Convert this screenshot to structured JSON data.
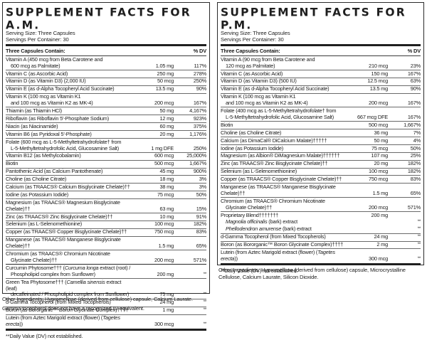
{
  "am": {
    "title": "SUPPLEMENT FACTS FOR A.M.",
    "serving_size": "Serving Size: Three Capsules",
    "servings_per_container": "Servings Per Container: 30",
    "header": {
      "label": "Three Capsules Contain:",
      "dv": "% DV"
    },
    "rows": [
      {
        "name": "Vitamin A (450 mcg from Beta Carotene and",
        "name2": "600 mcg as Palmitate)",
        "amount": "1.05 mg",
        "dv": "117%"
      },
      {
        "name": "Vitamin C (as Ascorbic Acid)",
        "amount": "250 mg",
        "dv": "278%"
      },
      {
        "name": "Vitamin D (as Vitamin D3) (2,000 IU)",
        "amount": "50 mcg",
        "dv": "250%"
      },
      {
        "name": "Vitamin E (as d-Alpha Tocopheryl Acid Succinate)",
        "amount": "13.5 mg",
        "dv": "90%"
      },
      {
        "name": "Vitamin K (100 mcg as Vitamin K1",
        "name2": "and 100 mcg as Vitamin K2 as MK-4)",
        "amount": "200 mcg",
        "dv": "167%"
      },
      {
        "name": "Thiamin (as Thiamin HCl)",
        "amount": "50 mg",
        "dv": "4,167%"
      },
      {
        "name": "Riboflavin (as Riboflavin 5'-Phosphate Sodium)",
        "amount": "12 mg",
        "dv": "923%"
      },
      {
        "name": "Niacin (as Niacinamide)",
        "amount": "60 mg",
        "dv": "375%"
      },
      {
        "name": "Vitamin B6 (as Pyridoxal 5'-Phosphate)",
        "amount": "20 mg",
        "dv": "1,176%"
      },
      {
        "name": "Folate (600 mcg as L-5-Methyltetrahydrofolate† from",
        "name2": "L-5-Methyltetrahydrofolic Acid, Glucosamine Salt)",
        "amount": "1 mg DFE",
        "dv": "250%"
      },
      {
        "name": "Vitamin B12 (as Methylcobalamin)",
        "amount": "600 mcg",
        "dv": "25,000%"
      },
      {
        "name": "Biotin",
        "amount": "500 mcg",
        "dv": "1,667%"
      },
      {
        "name": "Pantothenic Acid (as Calcium Pantothenate)",
        "amount": "45 mg",
        "dv": "900%"
      },
      {
        "name": "Choline (as Choline Citrate)",
        "amount": "18 mg",
        "dv": "3%"
      },
      {
        "name": "Calcium (as TRAACS® Calcium Bisglycinate Chelate)††",
        "amount": "38 mg",
        "dv": "3%"
      },
      {
        "name": "Iodine (as Potassium Iodide)",
        "amount": "75 mcg",
        "dv": "50%"
      },
      {
        "name": "Magnesium (as TRAACS® Magnesium Bisglycinate Chelate)††",
        "amount": "63 mg",
        "dv": "15%"
      },
      {
        "name": "Zinc (as TRAACS® Zinc Bisglycinate Chelate)††",
        "amount": "10 mg",
        "dv": "91%"
      },
      {
        "name": "Selenium (as L-Selenomethionine)",
        "amount": "100 mcg",
        "dv": "182%"
      },
      {
        "name": "Copper (as TRAACS® Copper Bisglycinate Chelate)††",
        "amount": "750 mcg",
        "dv": "83%"
      },
      {
        "name": "Manganese (as TRAACS® Manganese Bisglycinate Chelate)††",
        "amount": "1.5 mg",
        "dv": "65%"
      },
      {
        "name": "Chromium (as TRAACS® Chromium Nicotinate",
        "name2": "Glycinate Chelate)††",
        "amount": "200 mcg",
        "dv": "571%"
      }
    ],
    "botanicals": [
      {
        "pre": "Curcumin Phytosome††† (",
        "italic": "Curcuma longa",
        "post": " extract (root) /",
        "name2": "Phospholipid complex from Sunflower)",
        "amount": "200 mg",
        "dv": "**"
      },
      {
        "pre": "Green Tea Phytosome††† (",
        "italic": "Camellia sinensis",
        "post": " extract (leaf)",
        "name2": "decaffeinated / Phospholipid complex from Sunflower)",
        "amount": "75 mg",
        "dv": "**"
      },
      {
        "pre": "d-Gamma Tocopherol (from Mixed Tocopherols)",
        "italic": "",
        "post": "",
        "amount": "24 mg",
        "dv": "**"
      },
      {
        "pre": "Boron (as Bororganic™ Boron Glycinate Complex)††††",
        "italic": "",
        "post": "",
        "amount": "1 mg",
        "dv": "**"
      },
      {
        "pre": "Lutein (from Aztec Marigold extract (flower) (",
        "italic": "Tagetes erecta",
        "post": "))",
        "amount": "300 mcg",
        "dv": "**"
      }
    ],
    "footnote": "**Daily Value (DV) not established.",
    "other_ingredients": "Other Ingredients: Hypromellose (derived from cellulose) capsule, Calcium Laurate.",
    "note": "Gamma tocopherol does not have a recognized IU equivalent."
  },
  "pm": {
    "title": "SUPPLEMENT FACTS FOR P.M.",
    "serving_size": "Serving Size: Three Capsules",
    "servings_per_container": "Servings Per Container: 30",
    "header": {
      "label": "Three Capsules Contain:",
      "dv": "% DV"
    },
    "rows": [
      {
        "name": "Vitamin A (90 mcg from Beta Carotene and",
        "name2": "120 mcg as Palmitate)",
        "amount": "210 mcg",
        "dv": "23%"
      },
      {
        "name": "Vitamin C (as Ascorbic Acid)",
        "amount": "150 mg",
        "dv": "167%"
      },
      {
        "name": "Vitamin D (as Vitamin D3) (500 IU)",
        "amount": "12.5 mcg",
        "dv": "63%"
      },
      {
        "name": "Vitamin E (as d-Alpha Tocopheryl Acid Succinate)",
        "amount": "13.5 mg",
        "dv": "90%"
      },
      {
        "name": "Vitamin K (100 mcg as Vitamin K1",
        "name2": "and 100 mcg as Vitamin K2 as MK-4)",
        "amount": "200 mcg",
        "dv": "167%"
      },
      {
        "name": "Folate (400 mcg as L-5-Methyltetrahydrofolate† from",
        "name2": "L-5-Methyltetrahydrofolic Acid, Glucosamine Salt)",
        "amount": "667 mcg DFE",
        "dv": "167%"
      },
      {
        "name": "Biotin",
        "amount": "500 mcg",
        "dv": "1,667%"
      },
      {
        "name": "Choline (as Choline Citrate)",
        "amount": "36 mg",
        "dv": "7%"
      },
      {
        "name": "Calcium (as DimaCal® DiCalcium Malate)†††††",
        "amount": "50 mg",
        "dv": "4%"
      },
      {
        "name": "Iodine (as Potassium Iodide)",
        "amount": "75 mcg",
        "dv": "50%"
      },
      {
        "name": "Magnesium (as Albion® DiMagnesium Malate)††††††",
        "amount": "107 mg",
        "dv": "25%"
      },
      {
        "name": "Zinc (as TRAACS® Zinc Bisglycinate Chelate)††",
        "amount": "20 mg",
        "dv": "182%"
      },
      {
        "name": "Selenium (as L-Selenomethionine)",
        "amount": "100 mcg",
        "dv": "182%"
      },
      {
        "name": "Copper (as TRAACS® Copper Bisglycinate Chelate)††",
        "amount": "750 mcg",
        "dv": "83%"
      },
      {
        "name": "Manganese (as TRAACS® Manganese Bisglycinate Chelate)††",
        "amount": "1.5 mg",
        "dv": "65%"
      },
      {
        "name": "Chromium (as TRAACS® Chromium Nicotinate",
        "name2": "Glycinate Chelate)††",
        "amount": "200 mcg",
        "dv": "571%"
      }
    ],
    "blend": {
      "name": "Proprietary Blend†††††††",
      "amount": "200 mg",
      "items": [
        {
          "italic": "Magnolia officinalis",
          "post": " (bark) extract",
          "dv": "**"
        },
        {
          "italic": "Phellodendron amurense",
          "post": " (bark) extract",
          "dv": "**"
        }
      ]
    },
    "botanicals": [
      {
        "pre": "d-Gamma Tocopherol (from Mixed Tocopherols)",
        "italic": "",
        "post": "",
        "amount": "24 mg",
        "dv": "**"
      },
      {
        "pre": "Boron (as Bororganic™ Boron Glycinate Complex)††††",
        "italic": "",
        "post": "",
        "amount": "2 mg",
        "dv": "**"
      },
      {
        "pre": "Lutein (from Aztec Marigold extract (flower) (",
        "italic": "Tagetes erecta",
        "post": "))",
        "amount": "300 mcg",
        "dv": "**"
      }
    ],
    "footnote": "**Daily Value (DV) not established.",
    "other_ingredients": "Other Ingredients: Hypromellose (derived from cellulose) capsule, Microcrystalline Cellulose, Calcium Laurate, Silicon Dioxide."
  }
}
